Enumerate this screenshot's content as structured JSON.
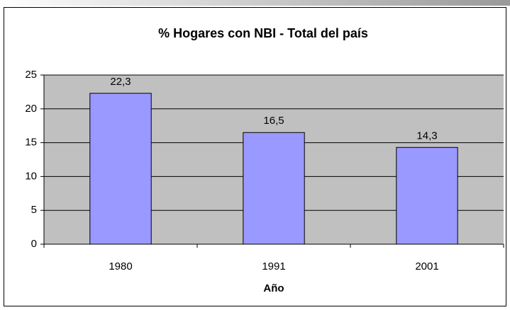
{
  "chart_data": {
    "type": "bar",
    "title": "% Hogares con NBI - Total del país",
    "x_label": "Año",
    "categories": [
      "1980",
      "1991",
      "2001"
    ],
    "values": [
      22.3,
      16.5,
      14.3
    ],
    "value_labels": [
      "22,3",
      "16,5",
      "14,3"
    ],
    "color": "#9999ff",
    "ylim": [
      0,
      25
    ],
    "yticks": [
      0,
      5,
      10,
      15,
      20,
      25
    ],
    "grid": true
  }
}
